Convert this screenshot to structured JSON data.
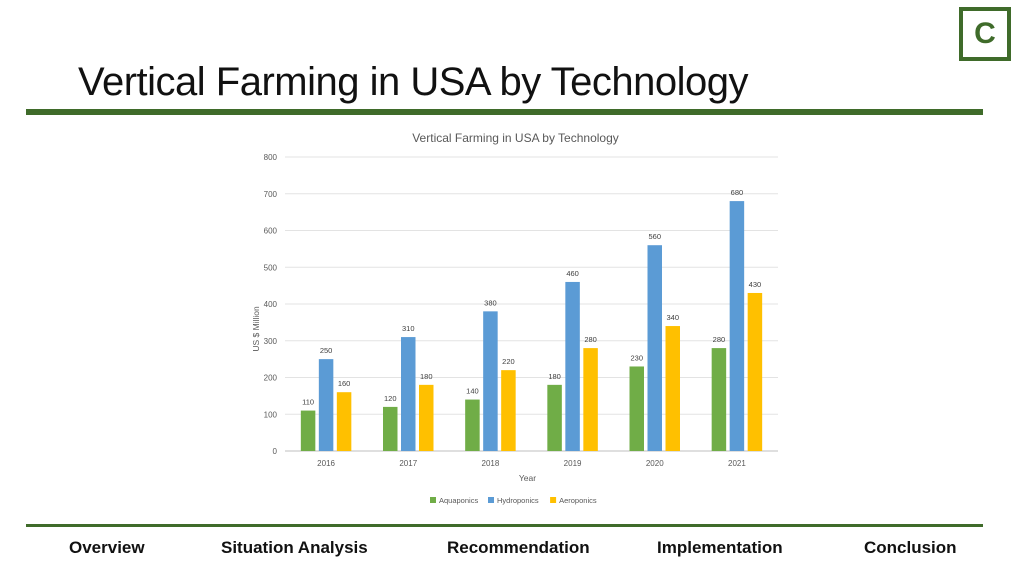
{
  "logo": {
    "letter": "C"
  },
  "slide": {
    "title": "Vertical Farming in USA by Technology"
  },
  "nav": {
    "items": [
      "Overview",
      "Situation Analysis",
      "Recommendation",
      "Implementation",
      "Conclusion"
    ]
  },
  "chart_data": {
    "type": "bar",
    "title": "Vertical Farming in USA by Technology",
    "xlabel": "Year",
    "ylabel": "US $ Million",
    "categories": [
      "2016",
      "2017",
      "2018",
      "2019",
      "2020",
      "2021"
    ],
    "ylim": [
      0,
      800
    ],
    "yticks": [
      0,
      100,
      200,
      300,
      400,
      500,
      600,
      700,
      800
    ],
    "grid": true,
    "legend_position": "bottom",
    "series": [
      {
        "name": "Aquaponics",
        "color": "#70ad47",
        "values": [
          110,
          120,
          140,
          180,
          230,
          280
        ]
      },
      {
        "name": "Hydroponics",
        "color": "#5b9bd5",
        "values": [
          250,
          310,
          380,
          460,
          560,
          680
        ]
      },
      {
        "name": "Aeroponics",
        "color": "#ffc000",
        "values": [
          160,
          180,
          220,
          280,
          340,
          430
        ]
      }
    ]
  }
}
